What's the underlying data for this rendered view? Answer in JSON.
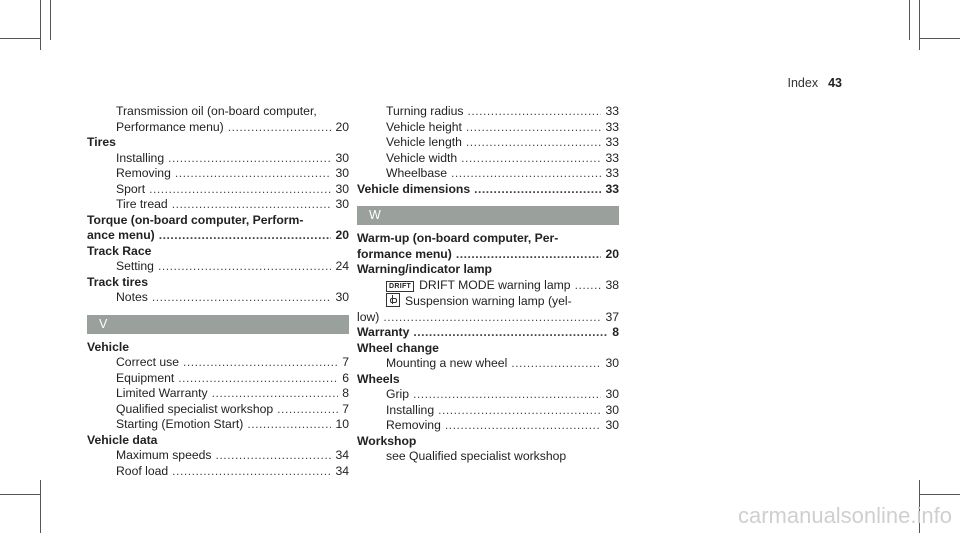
{
  "header": {
    "section": "Index",
    "page": "43"
  },
  "left": [
    {
      "t": "sub",
      "text": "Transmission oil (on-board computer,"
    },
    {
      "t": "sub",
      "text": "Performance menu)",
      "num": "20"
    },
    {
      "t": "head",
      "text": "Tires"
    },
    {
      "t": "sub",
      "text": "Installing",
      "num": "30"
    },
    {
      "t": "sub",
      "text": "Removing",
      "num": "30"
    },
    {
      "t": "sub",
      "text": "Sport",
      "num": "30"
    },
    {
      "t": "sub",
      "text": "Tire tread",
      "num": "30"
    },
    {
      "t": "head",
      "text": "Torque (on-board computer, Perform-"
    },
    {
      "t": "head",
      "text": "ance menu)",
      "num": "20"
    },
    {
      "t": "head",
      "text": "Track Race"
    },
    {
      "t": "sub",
      "text": "Setting",
      "num": "24"
    },
    {
      "t": "head",
      "text": "Track tires"
    },
    {
      "t": "sub",
      "text": "Notes",
      "num": "30"
    },
    {
      "t": "letter",
      "text": "V"
    },
    {
      "t": "head",
      "text": "Vehicle"
    },
    {
      "t": "sub",
      "text": "Correct use",
      "num": "7"
    },
    {
      "t": "sub",
      "text": "Equipment",
      "num": "6"
    },
    {
      "t": "sub",
      "text": "Limited Warranty",
      "num": "8"
    },
    {
      "t": "sub",
      "text": "Qualified specialist workshop",
      "num": "7"
    },
    {
      "t": "sub",
      "text": "Starting (Emotion Start)",
      "num": "10"
    },
    {
      "t": "head",
      "text": "Vehicle data"
    },
    {
      "t": "sub",
      "text": "Maximum speeds",
      "num": "34"
    },
    {
      "t": "sub",
      "text": "Roof load",
      "num": "34"
    }
  ],
  "right": [
    {
      "t": "sub",
      "text": "Turning radius",
      "num": "33"
    },
    {
      "t": "sub",
      "text": "Vehicle height",
      "num": "33"
    },
    {
      "t": "sub",
      "text": "Vehicle length",
      "num": "33"
    },
    {
      "t": "sub",
      "text": "Vehicle width",
      "num": "33"
    },
    {
      "t": "sub",
      "text": "Wheelbase",
      "num": "33"
    },
    {
      "t": "head",
      "text": "Vehicle dimensions",
      "num": "33"
    },
    {
      "t": "letter",
      "text": "W"
    },
    {
      "t": "head",
      "text": "Warm-up (on-board computer, Per-"
    },
    {
      "t": "head",
      "text": "formance menu)",
      "num": "20"
    },
    {
      "t": "head",
      "text": "Warning/indicator lamp"
    },
    {
      "t": "sub",
      "icon": "drift-tag",
      "tag": "DRIFT",
      "text": "DRIFT MODE warning lamp",
      "num": "38"
    },
    {
      "t": "sub",
      "icon": "suspension-icon",
      "text": "Suspension warning lamp (yel-"
    },
    {
      "t": "plain",
      "text": "low)",
      "num": "37"
    },
    {
      "t": "head",
      "text": "Warranty",
      "num": "8"
    },
    {
      "t": "head",
      "text": "Wheel change"
    },
    {
      "t": "sub",
      "text": "Mounting a new wheel",
      "num": "30"
    },
    {
      "t": "head",
      "text": "Wheels"
    },
    {
      "t": "sub",
      "text": "Grip",
      "num": "30"
    },
    {
      "t": "sub",
      "text": "Installing",
      "num": "30"
    },
    {
      "t": "sub",
      "text": "Removing",
      "num": "30"
    },
    {
      "t": "head",
      "text": "Workshop"
    },
    {
      "t": "sub",
      "text": "see Qualified specialist workshop"
    }
  ],
  "watermark": "carmanualsonline.info"
}
